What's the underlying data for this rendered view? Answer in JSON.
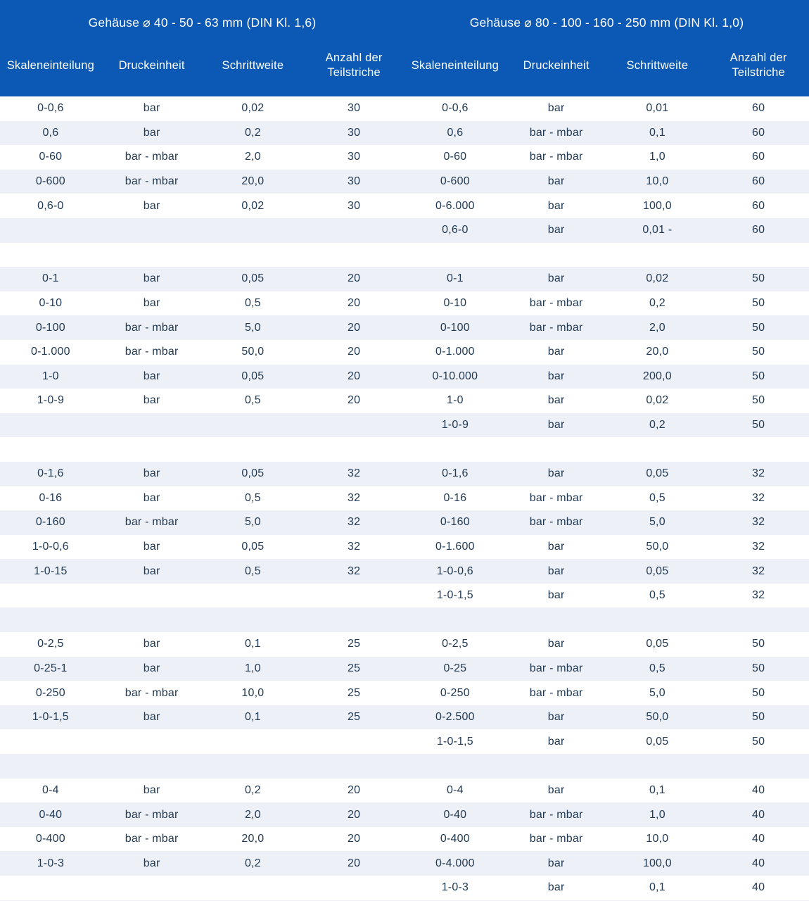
{
  "theme": {
    "header_bg": "#0b59b4",
    "header_text": "#ffffff",
    "row_bg": "#ffffff",
    "row_alt_bg": "#edf1f7",
    "data_text": "#223a54"
  },
  "header": {
    "left_title": "Gehäuse ⌀ 40 - 50 - 63 mm (DIN Kl. 1,6)",
    "right_title": "Gehäuse ⌀ 80 - 100 - 160 - 250 mm (DIN Kl. 1,0)",
    "columns": [
      "Skaleneinteilung",
      "Druckeinheit",
      "Schrittweite",
      "Anzahl der\nTeilstriche"
    ]
  },
  "table": {
    "rows": [
      [
        "0-0,6",
        "bar",
        "0,02",
        "30",
        "0-0,6",
        "bar",
        "0,01",
        "60"
      ],
      [
        "0,6",
        "bar",
        "0,2",
        "30",
        "0,6",
        "bar - mbar",
        "0,1",
        "60"
      ],
      [
        "0-60",
        "bar - mbar",
        "2,0",
        "30",
        "0-60",
        "bar - mbar",
        "1,0",
        "60"
      ],
      [
        "0-600",
        "bar - mbar",
        "20,0",
        "30",
        "0-600",
        "bar",
        "10,0",
        "60"
      ],
      [
        "0,6-0",
        "bar",
        "0,02",
        "30",
        "0-6.000",
        "bar",
        "100,0",
        "60"
      ],
      [
        "",
        "",
        "",
        "",
        "0,6-0",
        "bar",
        "0,01 -",
        "60"
      ],
      [],
      [
        "0-1",
        "bar",
        "0,05",
        "20",
        "0-1",
        "bar",
        "0,02",
        "50"
      ],
      [
        "0-10",
        "bar",
        "0,5",
        "20",
        "0-10",
        "bar - mbar",
        "0,2",
        "50"
      ],
      [
        "0-100",
        "bar - mbar",
        "5,0",
        "20",
        "0-100",
        "bar - mbar",
        "2,0",
        "50"
      ],
      [
        "0-1.000",
        "bar - mbar",
        "50,0",
        "20",
        "0-1.000",
        "bar",
        "20,0",
        "50"
      ],
      [
        "1-0",
        "bar",
        "0,05",
        "20",
        "0-10.000",
        "bar",
        "200,0",
        "50"
      ],
      [
        "1-0-9",
        "bar",
        "0,5",
        "20",
        "1-0",
        "bar",
        "0,02",
        "50"
      ],
      [
        "",
        "",
        "",
        "",
        "1-0-9",
        "bar",
        "0,2",
        "50"
      ],
      [],
      [
        "0-1,6",
        "bar",
        "0,05",
        "32",
        "0-1,6",
        "bar",
        "0,05",
        "32"
      ],
      [
        "0-16",
        "bar",
        "0,5",
        "32",
        "0-16",
        "bar - mbar",
        "0,5",
        "32"
      ],
      [
        "0-160",
        "bar - mbar",
        "5,0",
        "32",
        "0-160",
        "bar - mbar",
        "5,0",
        "32"
      ],
      [
        "1-0-0,6",
        "bar",
        "0,05",
        "32",
        "0-1.600",
        "bar",
        "50,0",
        "32"
      ],
      [
        "1-0-15",
        "bar",
        "0,5",
        "32",
        "1-0-0,6",
        "bar",
        "0,05",
        "32"
      ],
      [
        "",
        "",
        "",
        "",
        "1-0-1,5",
        "bar",
        "0,5",
        "32"
      ],
      [],
      [
        "0-2,5",
        "bar",
        "0,1",
        "25",
        "0-2,5",
        "bar",
        "0,05",
        "50"
      ],
      [
        "0-25-1",
        "bar",
        "1,0",
        "25",
        "0-25",
        "bar - mbar",
        "0,5",
        "50"
      ],
      [
        "0-250",
        "bar - mbar",
        "10,0",
        "25",
        "0-250",
        "bar - mbar",
        "5,0",
        "50"
      ],
      [
        "1-0-1,5",
        "bar",
        "0,1",
        "25",
        "0-2.500",
        "bar",
        "50,0",
        "50"
      ],
      [
        "",
        "",
        "",
        "",
        "1-0-1,5",
        "bar",
        "0,05",
        "50"
      ],
      [],
      [
        "0-4",
        "bar",
        "0,2",
        "20",
        "0-4",
        "bar",
        "0,1",
        "40"
      ],
      [
        "0-40",
        "bar - mbar",
        "2,0",
        "20",
        "0-40",
        "bar - mbar",
        "1,0",
        "40"
      ],
      [
        "0-400",
        "bar - mbar",
        "20,0",
        "20",
        "0-400",
        "bar - mbar",
        "10,0",
        "40"
      ],
      [
        "1-0-3",
        "bar",
        "0,2",
        "20",
        "0-4.000",
        "bar",
        "100,0",
        "40"
      ],
      [
        "",
        "",
        "",
        "",
        "1-0-3",
        "bar",
        "0,1",
        "40"
      ],
      []
    ]
  }
}
